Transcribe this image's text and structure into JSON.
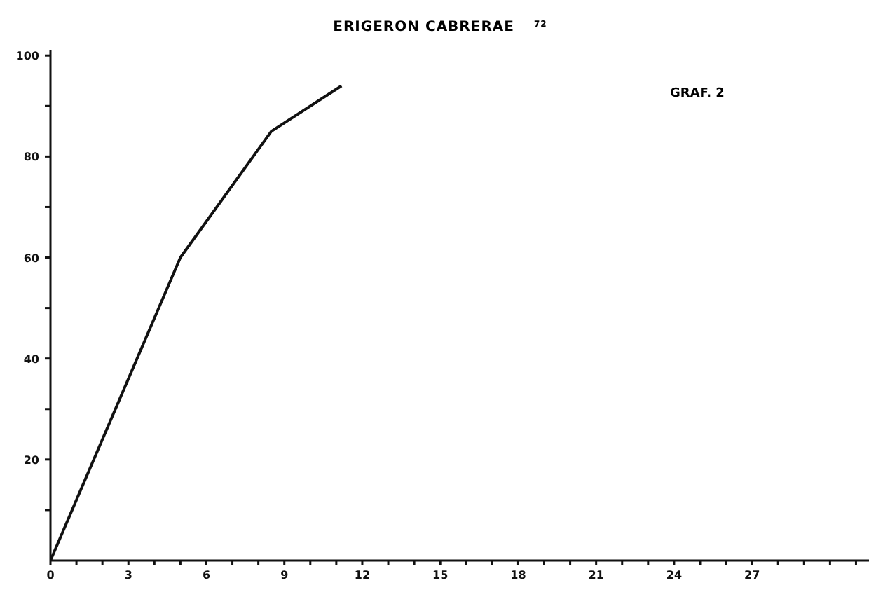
{
  "chart_data": {
    "type": "line",
    "title": "ERIGERON CABRERAE",
    "x": [
      0,
      5,
      8.5,
      11.2
    ],
    "series": [
      {
        "color": "#111111",
        "values": [
          0,
          60,
          85,
          94
        ]
      }
    ],
    "xlim": [
      0,
      31.5
    ],
    "xticks": [
      0,
      {
        "value": 1,
        "label": null
      },
      {
        "value": 2,
        "label": null
      },
      3,
      {
        "value": 4,
        "label": null
      },
      {
        "value": 5,
        "label": null
      },
      6,
      {
        "value": 7,
        "label": null
      },
      {
        "value": 8,
        "label": null
      },
      9,
      {
        "value": 10,
        "label": null
      },
      {
        "value": 11,
        "label": null
      },
      12,
      {
        "value": 13,
        "label": null
      },
      {
        "value": 14,
        "label": null
      },
      15,
      {
        "value": 16,
        "label": null
      },
      {
        "value": 17,
        "label": null
      },
      18,
      {
        "value": 19,
        "label": null
      },
      {
        "value": 20,
        "label": null
      },
      21,
      {
        "value": 22,
        "label": null
      },
      {
        "value": 23,
        "label": null
      },
      24,
      {
        "value": 25,
        "label": null
      },
      {
        "value": 26,
        "label": null
      },
      27,
      {
        "value": 28,
        "label": null
      },
      {
        "value": 29,
        "label": null
      },
      {
        "value": 30,
        "label": null
      },
      {
        "value": 31,
        "label": null
      }
    ],
    "ylim": [
      0,
      101
    ],
    "yticks": [
      {
        "value": 10,
        "label": null
      },
      20,
      {
        "value": 30,
        "label": null
      },
      40,
      {
        "value": 50,
        "label": null
      },
      60,
      {
        "value": 70,
        "label": null
      },
      80,
      {
        "value": 90,
        "label": null
      },
      100
    ],
    "annotations": [
      "72",
      "GRAF. 2"
    ],
    "grid": false,
    "legend": false,
    "marker": "none",
    "line_style": "solid"
  }
}
